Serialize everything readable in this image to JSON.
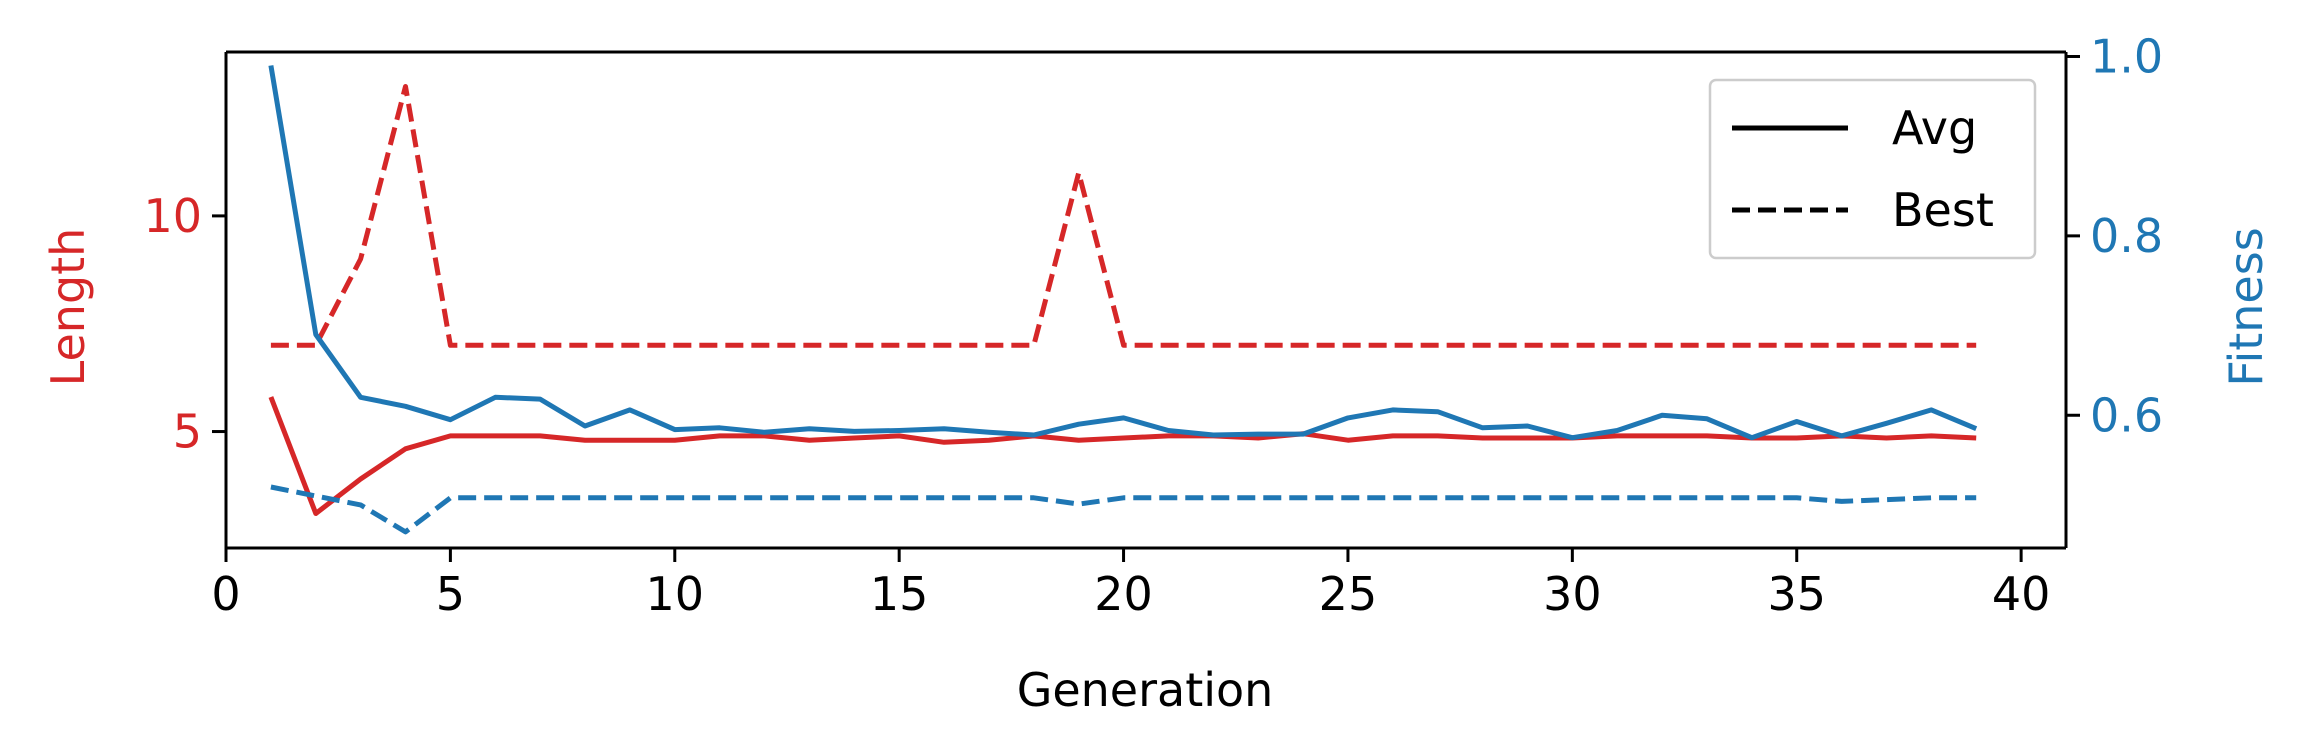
{
  "colors": {
    "length": "#d62728",
    "fitness": "#1f77b4",
    "axis": "#000000",
    "legend_border": "#cccccc"
  },
  "chart_data": {
    "type": "line",
    "title": "",
    "xlabel": "Generation",
    "ylabel_left": "Length",
    "ylabel_right": "Fitness",
    "xlim": [
      0,
      41
    ],
    "ylim_left": [
      2.3,
      13.8
    ],
    "ylim_right": [
      0.452,
      1.005
    ],
    "x_ticks": [
      0,
      5,
      10,
      15,
      20,
      25,
      30,
      35,
      40
    ],
    "y_left_ticks": [
      5,
      10
    ],
    "y_right_ticks": [
      0.6,
      0.8,
      1.0
    ],
    "x_tick_labels": [
      "0",
      "5",
      "10",
      "15",
      "20",
      "25",
      "30",
      "35",
      "40"
    ],
    "y_left_tick_labels": [
      "5",
      "10"
    ],
    "y_right_tick_labels": [
      "0.6",
      "0.8",
      "1.0"
    ],
    "grid": false,
    "legend_placement": "top-right",
    "legend": [
      {
        "label": "Avg",
        "style": "solid"
      },
      {
        "label": "Best",
        "style": "dashed"
      }
    ],
    "x": [
      1,
      2,
      3,
      4,
      5,
      6,
      7,
      8,
      9,
      10,
      11,
      12,
      13,
      14,
      15,
      16,
      17,
      18,
      19,
      20,
      21,
      22,
      23,
      24,
      25,
      26,
      27,
      28,
      29,
      30,
      31,
      32,
      33,
      34,
      35,
      36,
      37,
      38,
      39
    ],
    "series": [
      {
        "name": "Avg",
        "axis": "left",
        "color_key": "length",
        "style": "solid",
        "values": [
          5.8,
          3.1,
          3.9,
          4.6,
          4.9,
          4.9,
          4.9,
          4.8,
          4.8,
          4.8,
          4.9,
          4.9,
          4.8,
          4.85,
          4.9,
          4.75,
          4.8,
          4.9,
          4.8,
          4.85,
          4.9,
          4.9,
          4.85,
          4.95,
          4.8,
          4.9,
          4.9,
          4.85,
          4.85,
          4.85,
          4.9,
          4.9,
          4.9,
          4.85,
          4.85,
          4.9,
          4.85,
          4.9,
          4.85
        ]
      },
      {
        "name": "Best",
        "axis": "left",
        "color_key": "length",
        "style": "dashed",
        "values": [
          7,
          7,
          9,
          13,
          7,
          7,
          7,
          7,
          7,
          7,
          7,
          7,
          7,
          7,
          7,
          7,
          7,
          7,
          11,
          7,
          7,
          7,
          7,
          7,
          7,
          7,
          7,
          7,
          7,
          7,
          7,
          7,
          7,
          7,
          7,
          7,
          7,
          7,
          7
        ]
      },
      {
        "name": "Avg",
        "axis": "right",
        "color_key": "fitness",
        "style": "solid",
        "values": [
          0.99,
          0.69,
          0.62,
          0.61,
          0.595,
          0.62,
          0.618,
          0.588,
          0.606,
          0.584,
          0.586,
          0.581,
          0.585,
          0.582,
          0.583,
          0.585,
          0.581,
          0.578,
          0.59,
          0.597,
          0.583,
          0.578,
          0.579,
          0.579,
          0.597,
          0.606,
          0.604,
          0.586,
          0.588,
          0.575,
          0.583,
          0.6,
          0.596,
          0.575,
          0.593,
          0.577,
          0.591,
          0.606,
          0.585
        ]
      },
      {
        "name": "Best",
        "axis": "right",
        "color_key": "fitness",
        "style": "dashed",
        "values": [
          0.52,
          0.51,
          0.5,
          0.47,
          0.508,
          0.508,
          0.508,
          0.508,
          0.508,
          0.508,
          0.508,
          0.508,
          0.508,
          0.508,
          0.508,
          0.508,
          0.508,
          0.508,
          0.501,
          0.508,
          0.508,
          0.508,
          0.508,
          0.508,
          0.508,
          0.508,
          0.508,
          0.508,
          0.508,
          0.508,
          0.508,
          0.508,
          0.508,
          0.508,
          0.508,
          0.504,
          0.506,
          0.508,
          0.508
        ]
      }
    ]
  }
}
